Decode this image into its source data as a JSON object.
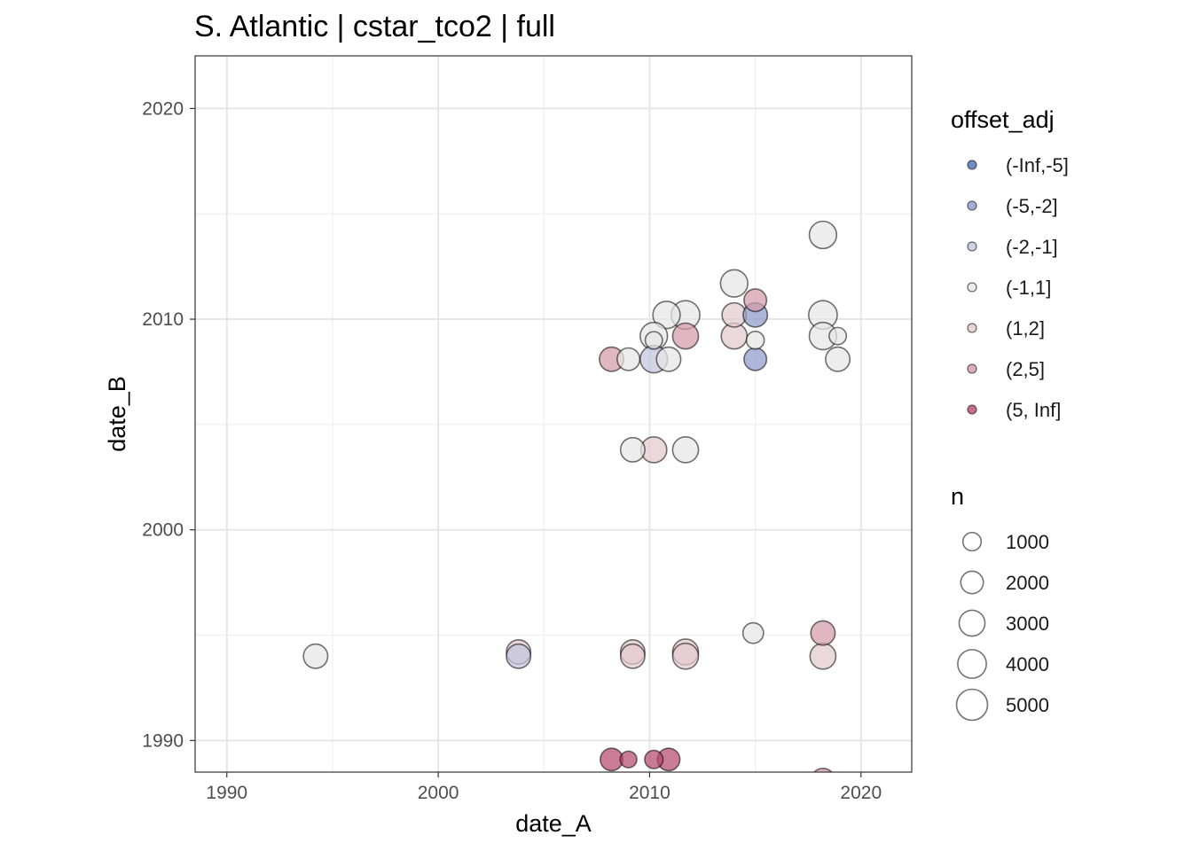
{
  "chart_data": {
    "type": "scatter",
    "title": "S. Atlantic | cstar_tco2 | full",
    "xlabel": "date_A",
    "ylabel": "date_B",
    "xlim": [
      1988.5,
      2022.4
    ],
    "ylim": [
      1988.5,
      2022.5
    ],
    "x_ticks": [
      1990,
      2000,
      2010,
      2020
    ],
    "y_ticks": [
      1990,
      2000,
      2010,
      2020
    ],
    "grid": true,
    "legend_position": "right",
    "color_legend": {
      "title": "offset_adj",
      "entries": [
        {
          "label": "(-Inf,-5]",
          "color": "#4a6fb3"
        },
        {
          "label": "(-5,-2]",
          "color": "#8f9bcc"
        },
        {
          "label": "(-2,-1]",
          "color": "#c2c5dc"
        },
        {
          "label": "(-1,1]",
          "color": "#e6e6e6"
        },
        {
          "label": "(1,2]",
          "color": "#e3c9d0"
        },
        {
          "label": "(2,5]",
          "color": "#d49aab"
        },
        {
          "label": "(5, Inf]",
          "color": "#b5496f"
        }
      ]
    },
    "size_legend": {
      "title": "n",
      "entries": [
        {
          "label": "1000",
          "value": 1000
        },
        {
          "label": "2000",
          "value": 2000
        },
        {
          "label": "3000",
          "value": 3000
        },
        {
          "label": "4000",
          "value": 4000
        },
        {
          "label": "5000",
          "value": 5000
        }
      ]
    },
    "points": [
      {
        "x": 2018.2,
        "y": 2014.0,
        "n": 3500,
        "bin": "(-1,1]"
      },
      {
        "x": 2014.0,
        "y": 2011.7,
        "n": 3500,
        "bin": "(-1,1]"
      },
      {
        "x": 2015.0,
        "y": 2010.9,
        "n": 2000,
        "bin": "(2,5]"
      },
      {
        "x": 2010.8,
        "y": 2010.2,
        "n": 3500,
        "bin": "(-1,1]"
      },
      {
        "x": 2011.7,
        "y": 2010.2,
        "n": 4000,
        "bin": "(-1,1]"
      },
      {
        "x": 2014.0,
        "y": 2010.2,
        "n": 2500,
        "bin": "(1,2]"
      },
      {
        "x": 2015.0,
        "y": 2010.2,
        "n": 2500,
        "bin": "(-5,-2]"
      },
      {
        "x": 2018.2,
        "y": 2010.2,
        "n": 4000,
        "bin": "(-1,1]"
      },
      {
        "x": 2010.2,
        "y": 2009.2,
        "n": 3500,
        "bin": "(-1,1]"
      },
      {
        "x": 2010.2,
        "y": 2009.0,
        "n": 800,
        "bin": "(-1,1]"
      },
      {
        "x": 2011.7,
        "y": 2009.2,
        "n": 3000,
        "bin": "(2,5]"
      },
      {
        "x": 2014.0,
        "y": 2009.2,
        "n": 3000,
        "bin": "(1,2]"
      },
      {
        "x": 2015.0,
        "y": 2009.0,
        "n": 900,
        "bin": "(-1,1]"
      },
      {
        "x": 2018.2,
        "y": 2009.2,
        "n": 3500,
        "bin": "(-1,1]"
      },
      {
        "x": 2018.9,
        "y": 2009.2,
        "n": 800,
        "bin": "(-1,1]"
      },
      {
        "x": 2008.2,
        "y": 2008.1,
        "n": 2500,
        "bin": "(2,5]"
      },
      {
        "x": 2009.0,
        "y": 2008.1,
        "n": 2000,
        "bin": "(-1,1]"
      },
      {
        "x": 2010.2,
        "y": 2008.1,
        "n": 3500,
        "bin": "(-2,-1]"
      },
      {
        "x": 2010.9,
        "y": 2008.1,
        "n": 2500,
        "bin": "(-1,1]"
      },
      {
        "x": 2015.0,
        "y": 2008.1,
        "n": 2000,
        "bin": "(-5,-2]"
      },
      {
        "x": 2018.9,
        "y": 2008.1,
        "n": 2500,
        "bin": "(-1,1]"
      },
      {
        "x": 2009.2,
        "y": 2003.8,
        "n": 2500,
        "bin": "(-1,1]"
      },
      {
        "x": 2010.2,
        "y": 2003.8,
        "n": 3000,
        "bin": "(1,2]"
      },
      {
        "x": 2011.7,
        "y": 2003.8,
        "n": 3000,
        "bin": "(-1,1]"
      },
      {
        "x": 1994.2,
        "y": 1994.0,
        "n": 2500,
        "bin": "(-1,1]"
      },
      {
        "x": 2003.8,
        "y": 1994.2,
        "n": 2500,
        "bin": "(1,2]"
      },
      {
        "x": 2003.8,
        "y": 1994.0,
        "n": 2500,
        "bin": "(-2,-1]"
      },
      {
        "x": 2009.2,
        "y": 1994.2,
        "n": 2500,
        "bin": "(1,2]"
      },
      {
        "x": 2009.2,
        "y": 1994.0,
        "n": 2500,
        "bin": "(1,2]"
      },
      {
        "x": 2011.7,
        "y": 1994.2,
        "n": 3000,
        "bin": "(1,2]"
      },
      {
        "x": 2011.7,
        "y": 1994.0,
        "n": 3000,
        "bin": "(1,2]"
      },
      {
        "x": 2014.9,
        "y": 1995.1,
        "n": 1500,
        "bin": "(-1,1]"
      },
      {
        "x": 2018.2,
        "y": 1995.1,
        "n": 2500,
        "bin": "(2,5]"
      },
      {
        "x": 2018.2,
        "y": 1994.0,
        "n": 3000,
        "bin": "(1,2]"
      },
      {
        "x": 2008.2,
        "y": 1989.1,
        "n": 2000,
        "bin": "(5, Inf]"
      },
      {
        "x": 2009.0,
        "y": 1989.1,
        "n": 700,
        "bin": "(5, Inf]"
      },
      {
        "x": 2010.2,
        "y": 1989.1,
        "n": 1000,
        "bin": "(5, Inf]"
      },
      {
        "x": 2010.9,
        "y": 1989.1,
        "n": 2000,
        "bin": "(5, Inf]"
      },
      {
        "x": 2018.2,
        "y": 1988.1,
        "n": 2500,
        "bin": "(2,5]"
      }
    ]
  }
}
